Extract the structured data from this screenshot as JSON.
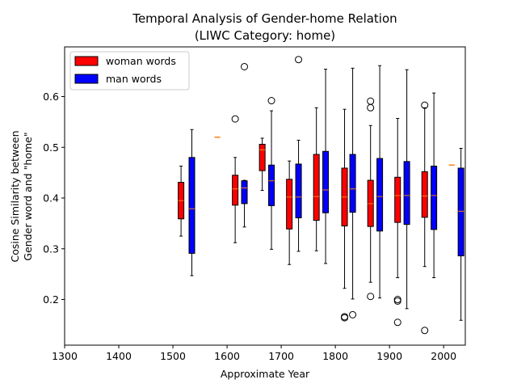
{
  "chart_data": {
    "type": "box",
    "title_line1": "Temporal Analysis of Gender-home Relation",
    "title_line2": "(LIWC Category: home)",
    "xlabel": "Approximate Year",
    "ylabel_line1": "Cosine Similarity between",
    "ylabel_line2": "Gender word and \"home\"",
    "xlim": [
      1300,
      2040
    ],
    "ylim": [
      0.11,
      0.698
    ],
    "xticks": [
      1300,
      1400,
      1500,
      1600,
      1700,
      1800,
      1900,
      2000
    ],
    "yticks": [
      0.2,
      0.3,
      0.4,
      0.5,
      0.6
    ],
    "ytick_labels": [
      "0.2",
      "0.3",
      "0.4",
      "0.5",
      "0.6"
    ],
    "legend_position": "top-left",
    "colors": {
      "woman": "#ff0000",
      "man": "#0000ff",
      "median": "#ff7f0e"
    },
    "series": [
      {
        "name": "woman words",
        "key": "woman",
        "boxes": [
          {
            "x": 1515,
            "whislo": 0.325,
            "q1": 0.359,
            "med": 0.395,
            "q3": 0.431,
            "whishi": 0.463,
            "fliers": []
          },
          {
            "x": 1582,
            "whislo": 0.52,
            "q1": 0.52,
            "med": 0.52,
            "q3": 0.52,
            "whishi": 0.52,
            "fliers": []
          },
          {
            "x": 1615,
            "whislo": 0.312,
            "q1": 0.386,
            "med": 0.418,
            "q3": 0.445,
            "whishi": 0.48,
            "fliers": [
              0.556
            ]
          },
          {
            "x": 1665,
            "whislo": 0.415,
            "q1": 0.454,
            "med": 0.495,
            "q3": 0.506,
            "whishi": 0.518,
            "fliers": []
          },
          {
            "x": 1715,
            "whislo": 0.269,
            "q1": 0.339,
            "med": 0.402,
            "q3": 0.437,
            "whishi": 0.473,
            "fliers": []
          },
          {
            "x": 1765,
            "whislo": 0.296,
            "q1": 0.356,
            "med": 0.403,
            "q3": 0.486,
            "whishi": 0.578,
            "fliers": []
          },
          {
            "x": 1817,
            "whislo": 0.222,
            "q1": 0.345,
            "med": 0.402,
            "q3": 0.459,
            "whishi": 0.575,
            "fliers": [
              0.164,
              0.166
            ]
          },
          {
            "x": 1865,
            "whislo": 0.234,
            "q1": 0.344,
            "med": 0.389,
            "q3": 0.435,
            "whishi": 0.543,
            "fliers": [
              0.206,
              0.578,
              0.591
            ]
          },
          {
            "x": 1915,
            "whislo": 0.243,
            "q1": 0.352,
            "med": 0.405,
            "q3": 0.441,
            "whishi": 0.557,
            "fliers": [
              0.155,
              0.197,
              0.2
            ]
          },
          {
            "x": 1965,
            "whislo": 0.265,
            "q1": 0.362,
            "med": 0.404,
            "q3": 0.452,
            "whishi": 0.578,
            "fliers": [
              0.139,
              0.583
            ]
          },
          {
            "x": 2015,
            "whislo": 0.465,
            "q1": 0.465,
            "med": 0.465,
            "q3": 0.465,
            "whishi": 0.465,
            "fliers": []
          }
        ]
      },
      {
        "name": "man words",
        "key": "man",
        "boxes": [
          {
            "x": 1535,
            "whislo": 0.247,
            "q1": 0.291,
            "med": 0.379,
            "q3": 0.48,
            "whishi": 0.535,
            "fliers": []
          },
          {
            "x": 1632,
            "whislo": 0.343,
            "q1": 0.389,
            "med": 0.42,
            "q3": 0.434,
            "whishi": 0.435,
            "fliers": [
              0.659
            ]
          },
          {
            "x": 1682,
            "whislo": 0.299,
            "q1": 0.385,
            "med": 0.434,
            "q3": 0.465,
            "whishi": 0.572,
            "fliers": [
              0.592
            ]
          },
          {
            "x": 1732,
            "whislo": 0.295,
            "q1": 0.361,
            "med": 0.402,
            "q3": 0.467,
            "whishi": 0.514,
            "fliers": [
              0.673
            ]
          },
          {
            "x": 1782,
            "whislo": 0.271,
            "q1": 0.371,
            "med": 0.416,
            "q3": 0.492,
            "whishi": 0.654,
            "fliers": []
          },
          {
            "x": 1832,
            "whislo": 0.201,
            "q1": 0.372,
            "med": 0.418,
            "q3": 0.486,
            "whishi": 0.656,
            "fliers": [
              0.17
            ]
          },
          {
            "x": 1882,
            "whislo": 0.203,
            "q1": 0.335,
            "med": 0.403,
            "q3": 0.478,
            "whishi": 0.661,
            "fliers": []
          },
          {
            "x": 1932,
            "whislo": 0.182,
            "q1": 0.348,
            "med": 0.405,
            "q3": 0.472,
            "whishi": 0.653,
            "fliers": []
          },
          {
            "x": 1982,
            "whislo": 0.243,
            "q1": 0.338,
            "med": 0.405,
            "q3": 0.463,
            "whishi": 0.607,
            "fliers": []
          },
          {
            "x": 2032,
            "whislo": 0.159,
            "q1": 0.286,
            "med": 0.374,
            "q3": 0.459,
            "whishi": 0.498,
            "fliers": []
          }
        ]
      }
    ]
  }
}
